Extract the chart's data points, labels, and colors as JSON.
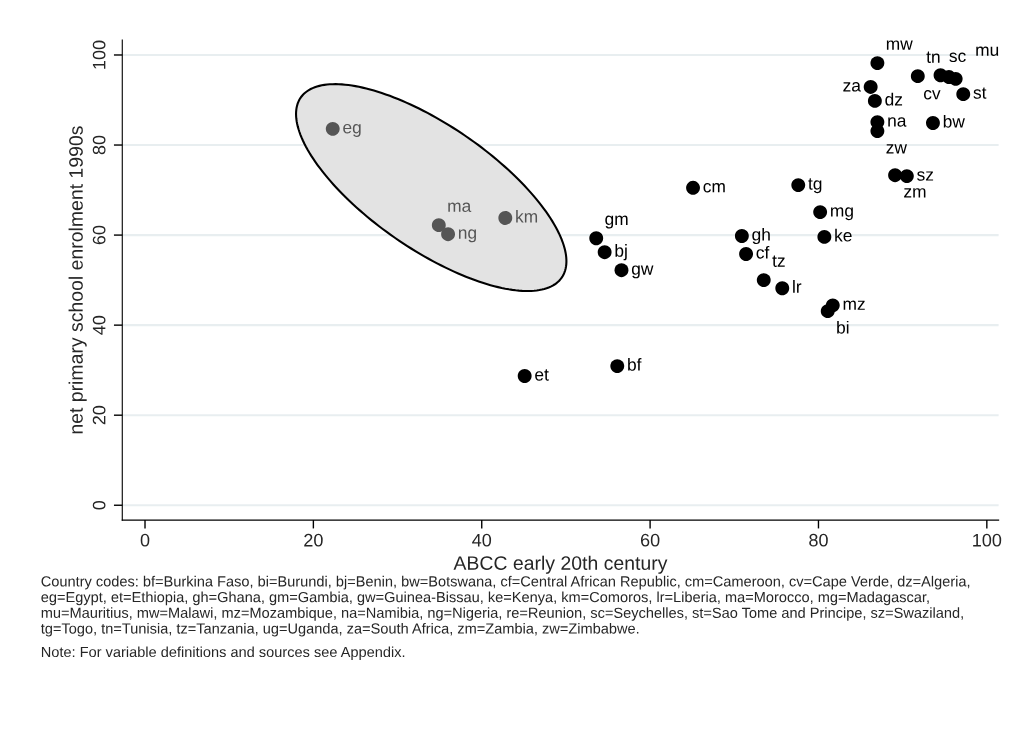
{
  "chart_data": {
    "type": "scatter",
    "xlabel": "ABCC early 20th century",
    "ylabel": "net primary school enrolment 1990s",
    "x": [
      87.0,
      91.8,
      94.5,
      95.5,
      96.3,
      97.2,
      86.2,
      86.7,
      87.0,
      87.0,
      93.6,
      89.1,
      90.5,
      65.1,
      77.6,
      80.2,
      53.6,
      54.6,
      56.6,
      70.9,
      71.4,
      80.7,
      73.5,
      75.7,
      81.7,
      81.1,
      56.1,
      45.1,
      22.3,
      34.9,
      36.0,
      42.8
    ],
    "values": [
      98.2,
      95.3,
      95.5,
      95.1,
      94.7,
      91.3,
      92.9,
      89.8,
      85.1,
      83.1,
      84.9,
      73.3,
      73.1,
      70.5,
      71.1,
      65.1,
      59.3,
      56.2,
      52.2,
      59.8,
      55.8,
      59.6,
      50.0,
      48.2,
      44.4,
      43.1,
      30.9,
      28.7,
      83.6,
      62.2,
      60.2,
      63.8
    ],
    "colors": [
      "#000000",
      "#000000",
      "#000000",
      "#000000",
      "#000000",
      "#000000",
      "#000000",
      "#000000",
      "#000000",
      "#000000",
      "#000000",
      "#000000",
      "#000000",
      "#000000",
      "#000000",
      "#000000",
      "#000000",
      "#000000",
      "#000000",
      "#000000",
      "#000000",
      "#000000",
      "#000000",
      "#000000",
      "#000000",
      "#000000",
      "#000000",
      "#000000",
      "#555555",
      "#555555",
      "#555555",
      "#555555"
    ],
    "annotations": [
      {
        "text": "mw",
        "x": 87.0,
        "y": 98.2
      },
      {
        "text": "tn",
        "x": 91.8,
        "y": 95.3
      },
      {
        "text": "sc",
        "x": 94.5,
        "y": 95.5
      },
      {
        "text": "cv",
        "x": 95.5,
        "y": 95.1
      },
      {
        "text": "mu",
        "x": 96.3,
        "y": 94.7
      },
      {
        "text": "st",
        "x": 97.2,
        "y": 91.3
      },
      {
        "text": "za",
        "x": 86.2,
        "y": 92.9
      },
      {
        "text": "dz",
        "x": 86.7,
        "y": 89.8
      },
      {
        "text": "na",
        "x": 87.0,
        "y": 85.1
      },
      {
        "text": "zw",
        "x": 87.0,
        "y": 83.1
      },
      {
        "text": "bw",
        "x": 93.6,
        "y": 84.9
      },
      {
        "text": "zm",
        "x": 89.1,
        "y": 73.3
      },
      {
        "text": "sz",
        "x": 90.5,
        "y": 73.1
      },
      {
        "text": "cm",
        "x": 65.1,
        "y": 70.5
      },
      {
        "text": "tg",
        "x": 77.6,
        "y": 71.1
      },
      {
        "text": "mg",
        "x": 80.2,
        "y": 65.1
      },
      {
        "text": "gm",
        "x": 53.6,
        "y": 59.3
      },
      {
        "text": "bj",
        "x": 54.6,
        "y": 56.2
      },
      {
        "text": "gw",
        "x": 56.6,
        "y": 52.2
      },
      {
        "text": "gh",
        "x": 70.9,
        "y": 59.8
      },
      {
        "text": "cf",
        "x": 71.4,
        "y": 55.8
      },
      {
        "text": "ke",
        "x": 80.7,
        "y": 59.6
      },
      {
        "text": "tz",
        "x": 73.5,
        "y": 50.0
      },
      {
        "text": "lr",
        "x": 75.7,
        "y": 48.2
      },
      {
        "text": "mz",
        "x": 81.7,
        "y": 44.4
      },
      {
        "text": "bi",
        "x": 81.1,
        "y": 43.1
      },
      {
        "text": "bf",
        "x": 56.1,
        "y": 30.9
      },
      {
        "text": "et",
        "x": 45.1,
        "y": 28.7
      },
      {
        "text": "eg",
        "x": 22.3,
        "y": 83.6
      },
      {
        "text": "ma",
        "x": 34.9,
        "y": 62.2
      },
      {
        "text": "ng",
        "x": 36.0,
        "y": 60.2
      },
      {
        "text": "km",
        "x": 42.8,
        "y": 63.8
      },
      "Country codes: bf=Burkina Faso, bi=Burundi, bj=Benin, bw=Botswana, cf=Central African Republic, cm=Cameroon, cv=Cape Verde, dz=Algeria, eg=Egypt, et=Ethiopia, gh=Ghana, gm=Gambia, gw=Guinea-Bissau, ke=Kenya, km=Comoros, lr=Liberia, ma=Morocco, mg=Madagascar, mu=Mauritius, mw=Malawi, mz=Mozambique, na=Namibia, ng=Nigeria, re=Reunion, sc=Seychelles, st=Sao Tome and Principe, sz=Swaziland, tg=Togo, tn=Tunisia, tz=Tanzania, ug=Uganda, za=South Africa, zm=Zambia, zw=Zimbabwe.",
      "Note: For variable definitions and sources see Appendix."
    ],
    "xlim": [
      -2.7,
      101.4
    ],
    "ylim": [
      -3.3,
      103.3
    ],
    "xticks": [
      0,
      20,
      40,
      60,
      80,
      100
    ],
    "yticks": [
      0,
      20,
      40,
      60,
      80,
      100
    ],
    "grid": "y",
    "marker": "circle"
  }
}
